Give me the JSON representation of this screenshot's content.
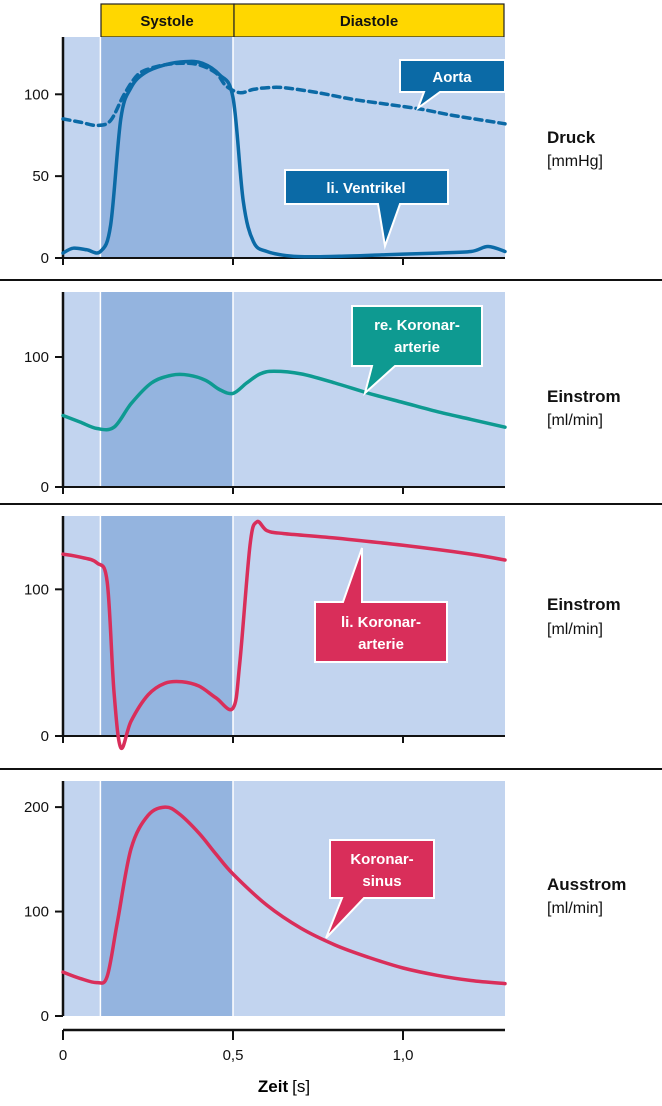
{
  "colors": {
    "plot_bg": "#c2d4ef",
    "systole_bg": "#94b4df",
    "phase_bar": "#ffd700",
    "aorta": "#0b6aa6",
    "ventrikel": "#0b6aa6",
    "re_koronar": "#0e9a91",
    "li_koronar": "#d92e5a",
    "sinus": "#d92e5a"
  },
  "phases": {
    "systole": "Systole",
    "diastole": "Diastole"
  },
  "x_axis": {
    "label": "Zeit",
    "unit": "[s]",
    "ticks": [
      "0",
      "0,5",
      "1,0"
    ],
    "xlim": [
      0,
      1.3
    ],
    "systole_range": [
      0.11,
      0.5
    ]
  },
  "chart_data": [
    {
      "type": "line",
      "panel": "pressure",
      "title": "Druck",
      "unit": "[mmHg]",
      "ylim": [
        0,
        135
      ],
      "yticks": [
        "0",
        "50",
        "100"
      ],
      "series": [
        {
          "name": "Aorta",
          "style": "dashed",
          "x": [
            0,
            0.05,
            0.1,
            0.14,
            0.18,
            0.22,
            0.26,
            0.3,
            0.35,
            0.4,
            0.45,
            0.48,
            0.52,
            0.56,
            0.6,
            0.65,
            0.75,
            0.85,
            0.95,
            1.05,
            1.15,
            1.3
          ],
          "y": [
            85,
            83,
            81,
            84,
            100,
            112,
            116,
            118,
            119,
            118,
            113,
            105,
            101,
            103,
            104,
            104,
            101,
            97,
            94,
            91,
            87,
            82
          ]
        },
        {
          "name": "li. Ventrikel",
          "style": "solid",
          "x": [
            0,
            0.03,
            0.07,
            0.11,
            0.14,
            0.17,
            0.2,
            0.24,
            0.3,
            0.36,
            0.41,
            0.46,
            0.5,
            0.53,
            0.56,
            0.6,
            0.68,
            0.8,
            0.95,
            1.1,
            1.2,
            1.25,
            1.3
          ],
          "y": [
            3,
            6,
            5,
            4,
            20,
            85,
            104,
            113,
            118,
            120,
            119,
            112,
            98,
            35,
            10,
            4,
            1,
            1,
            2,
            3,
            4,
            7,
            4
          ]
        }
      ]
    },
    {
      "type": "line",
      "panel": "re-koronar",
      "title": "Einstrom",
      "unit": "[ml/min]",
      "ylim": [
        0,
        150
      ],
      "yticks": [
        "0",
        "100"
      ],
      "series": [
        {
          "name": "re. Koronar-arterie",
          "x": [
            0,
            0.05,
            0.1,
            0.15,
            0.2,
            0.26,
            0.32,
            0.37,
            0.42,
            0.46,
            0.5,
            0.54,
            0.58,
            0.62,
            0.7,
            0.8,
            0.9,
            1.0,
            1.1,
            1.2,
            1.3
          ],
          "y": [
            55,
            50,
            45,
            46,
            64,
            80,
            86,
            86,
            82,
            75,
            72,
            80,
            87,
            89,
            87,
            80,
            72,
            65,
            58,
            52,
            46
          ]
        }
      ]
    },
    {
      "type": "line",
      "panel": "li-koronar",
      "title": "Einstrom",
      "unit": "[ml/min]",
      "ylim": [
        0,
        150
      ],
      "yticks": [
        "0",
        "100"
      ],
      "series": [
        {
          "name": "li. Koronar-arterie",
          "x": [
            0,
            0.05,
            0.1,
            0.13,
            0.15,
            0.17,
            0.2,
            0.25,
            0.3,
            0.35,
            0.4,
            0.45,
            0.5,
            0.52,
            0.55,
            0.57,
            0.6,
            0.65,
            0.8,
            1.0,
            1.2,
            1.3
          ],
          "y": [
            124,
            122,
            118,
            105,
            30,
            -8,
            10,
            28,
            36,
            37,
            34,
            26,
            19,
            50,
            130,
            146,
            140,
            138,
            135,
            130,
            124,
            120
          ]
        }
      ]
    },
    {
      "type": "line",
      "panel": "sinus",
      "title": "Ausstrom",
      "unit": "[ml/min]",
      "ylim": [
        0,
        225
      ],
      "yticks": [
        "0",
        "100",
        "200"
      ],
      "series": [
        {
          "name": "Koronar-sinus",
          "x": [
            0,
            0.05,
            0.1,
            0.13,
            0.16,
            0.2,
            0.25,
            0.3,
            0.34,
            0.4,
            0.45,
            0.5,
            0.6,
            0.7,
            0.8,
            0.9,
            1.0,
            1.1,
            1.2,
            1.3
          ],
          "y": [
            42,
            36,
            32,
            38,
            90,
            160,
            192,
            200,
            194,
            175,
            155,
            136,
            106,
            84,
            68,
            56,
            46,
            39,
            34,
            31
          ]
        }
      ]
    }
  ],
  "callouts": {
    "aorta": [
      "Aorta"
    ],
    "ventrikel": [
      "li. Ventrikel"
    ],
    "re_koronar": [
      "re. Koronar-",
      "arterie"
    ],
    "li_koronar": [
      "li. Koronar-",
      "arterie"
    ],
    "sinus": [
      "Koronar-",
      "sinus"
    ]
  }
}
